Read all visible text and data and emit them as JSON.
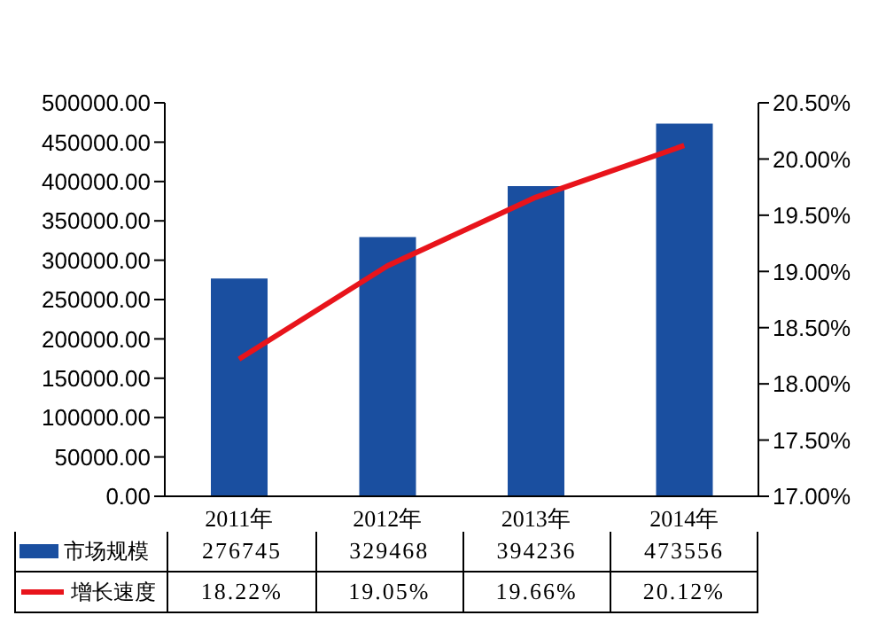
{
  "chart_data": {
    "type": "bar",
    "categories": [
      "2011年",
      "2012年",
      "2013年",
      "2014年"
    ],
    "series": [
      {
        "name": "市场规模",
        "color": "#1a4fa0",
        "values": [
          276745,
          329468,
          394236,
          473556
        ],
        "value_labels": [
          "276745",
          "329468",
          "394236",
          "473556"
        ]
      },
      {
        "name": "增长速度",
        "type": "line",
        "axis": "y2",
        "color": "#e8141b",
        "values": [
          18.22,
          19.05,
          19.66,
          20.12
        ],
        "value_labels": [
          "18.22%",
          "19.05%",
          "19.66%",
          "20.12%"
        ]
      }
    ],
    "ylim": [
      0,
      500000
    ],
    "yticks": [
      {
        "value": 0,
        "label": "0.00"
      },
      {
        "value": 50000,
        "label": "50000.00"
      },
      {
        "value": 100000,
        "label": "100000.00"
      },
      {
        "value": 150000,
        "label": "150000.00"
      },
      {
        "value": 200000,
        "label": "200000.00"
      },
      {
        "value": 250000,
        "label": "250000.00"
      },
      {
        "value": 300000,
        "label": "300000.00"
      },
      {
        "value": 350000,
        "label": "350000.00"
      },
      {
        "value": 400000,
        "label": "400000.00"
      },
      {
        "value": 450000,
        "label": "450000.00"
      },
      {
        "value": 500000,
        "label": "500000.00"
      }
    ],
    "y2lim": [
      17,
      20.5
    ],
    "y2ticks": [
      {
        "value": 17,
        "label": "17.00%"
      },
      {
        "value": 17.5,
        "label": "17.50%"
      },
      {
        "value": 18,
        "label": "18.00%"
      },
      {
        "value": 18.5,
        "label": "18.50%"
      },
      {
        "value": 19,
        "label": "19.00%"
      },
      {
        "value": 19.5,
        "label": "19.50%"
      },
      {
        "value": 20,
        "label": "20.00%"
      },
      {
        "value": 20.5,
        "label": "20.50%"
      }
    ],
    "legend": "bottom",
    "grid": false,
    "marker": "none",
    "line_style": "solid"
  }
}
